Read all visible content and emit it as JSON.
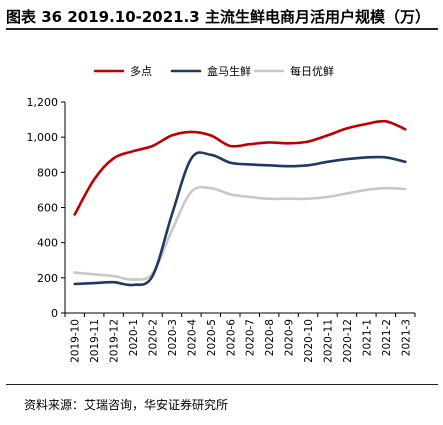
{
  "title": "图表 36 2019.10-2021.3 主流生鲜电商月活用户规模（万）",
  "source": "资料来源：艾瑞咨询，华安证券研究所",
  "chart_data": {
    "type": "line",
    "title": "",
    "xlabel": "",
    "ylabel": "",
    "categories": [
      "2019-10",
      "2019-11",
      "2019-12",
      "2020-1",
      "2020-2",
      "2020-3",
      "2020-4",
      "2020-5",
      "2020-6",
      "2020-7",
      "2020-8",
      "2020-9",
      "2020-10",
      "2020-11",
      "2020-12",
      "2021-1",
      "2021-2",
      "2021-3"
    ],
    "ylim": [
      0,
      1200
    ],
    "yticks": [
      0,
      200,
      400,
      600,
      800,
      1000,
      1200
    ],
    "ytick_labels": [
      "0",
      "200",
      "400",
      "600",
      "800",
      "1,000",
      "1,200"
    ],
    "grid": false,
    "legend_position": "top",
    "series": [
      {
        "name": "多点",
        "color": "#c00000",
        "values": [
          560,
          760,
          880,
          920,
          950,
          1010,
          1030,
          1010,
          950,
          960,
          970,
          965,
          975,
          1010,
          1050,
          1075,
          1090,
          1045
        ]
      },
      {
        "name": "盒马生鲜",
        "color": "#203864",
        "values": [
          165,
          170,
          175,
          160,
          210,
          560,
          880,
          900,
          855,
          845,
          840,
          835,
          840,
          860,
          875,
          885,
          885,
          860
        ]
      },
      {
        "name": "每日优鲜",
        "color": "#c8c8c8",
        "values": [
          230,
          220,
          210,
          190,
          225,
          470,
          690,
          710,
          675,
          660,
          650,
          650,
          650,
          660,
          680,
          700,
          710,
          705
        ]
      }
    ]
  }
}
